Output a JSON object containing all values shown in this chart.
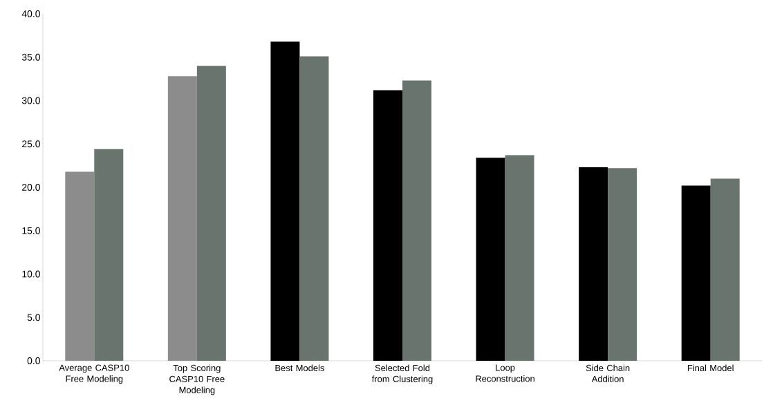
{
  "chart_data": {
    "type": "bar",
    "categories": [
      "Average CASP10 Free Modeling",
      "Top Scoring CASP10 Free Modeling",
      "Best Models",
      "Selected Fold from Clustering",
      "Loop Reconstruction",
      "Side Chain Addition",
      "Final Model"
    ],
    "series": [
      {
        "colors": [
          "#8c8c8c",
          "#8c8c8c",
          "#000000",
          "#000000",
          "#000000",
          "#000000",
          "#000000"
        ],
        "values": [
          21.8,
          32.8,
          36.8,
          31.2,
          23.4,
          22.3,
          20.2
        ]
      },
      {
        "color": "#69746f",
        "values": [
          24.4,
          34.0,
          35.1,
          32.3,
          23.7,
          22.2,
          21.0
        ]
      }
    ],
    "ylim": [
      0,
      40
    ],
    "yticks": [
      {
        "value": 0,
        "label": "0.0"
      },
      {
        "value": 5,
        "label": "5.0"
      },
      {
        "value": 10,
        "label": "10.0"
      },
      {
        "value": 15,
        "label": "15.0"
      },
      {
        "value": 20,
        "label": "20.0"
      },
      {
        "value": 25,
        "label": "25.0"
      },
      {
        "value": 30,
        "label": "30.0"
      },
      {
        "value": 35,
        "label": "35.0"
      },
      {
        "value": 40,
        "label": "40.0"
      }
    ],
    "grid": false
  }
}
